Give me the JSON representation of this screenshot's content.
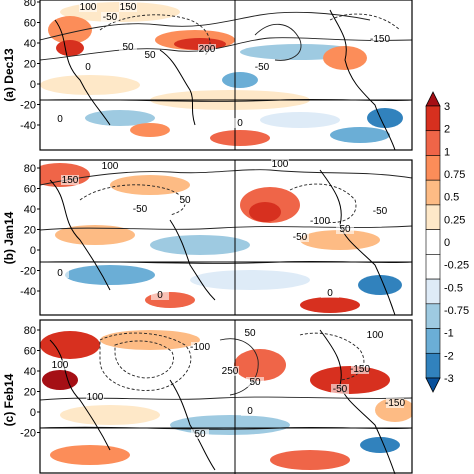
{
  "figure": {
    "colorbar": {
      "ticks": [
        "3",
        "2",
        "1",
        "0.75",
        "0.5",
        "0.25",
        "0",
        "-0.25",
        "-0.5",
        "-0.75",
        "-1",
        "-2",
        "-3"
      ],
      "colors": [
        "#a50f15",
        "#d7301f",
        "#ef6548",
        "#fc8d59",
        "#fdbb84",
        "#fee8c8",
        "#ffffff",
        "#ffffff",
        "#deebf7",
        "#9ecae1",
        "#6baed6",
        "#3182bd",
        "#08519c"
      ]
    },
    "panels": [
      {
        "label": "(a) Dec13",
        "yticks": [
          "80",
          "60",
          "40",
          "20",
          "0",
          "-20",
          "-40"
        ],
        "contour_labels": [
          "100",
          "150",
          "-50",
          "50",
          "0",
          "200",
          "-50",
          "50",
          "-150",
          "0",
          "0"
        ]
      },
      {
        "label": "(b) Jan14",
        "yticks": [
          "80",
          "60",
          "40",
          "20",
          "0",
          "-20",
          "-40"
        ],
        "contour_labels": [
          "100",
          "150",
          "-50",
          "50",
          "100",
          "-100",
          "-50",
          "50",
          "-50",
          "0",
          "0",
          "0"
        ]
      },
      {
        "label": "(c) Feb14",
        "yticks": [
          "80",
          "60",
          "40",
          "20",
          "0",
          "-20"
        ],
        "contour_labels": [
          "50",
          "100",
          "-100",
          "100",
          "250",
          "-150",
          "50",
          "100",
          "-150",
          "-50",
          "0",
          "50"
        ]
      }
    ]
  }
}
